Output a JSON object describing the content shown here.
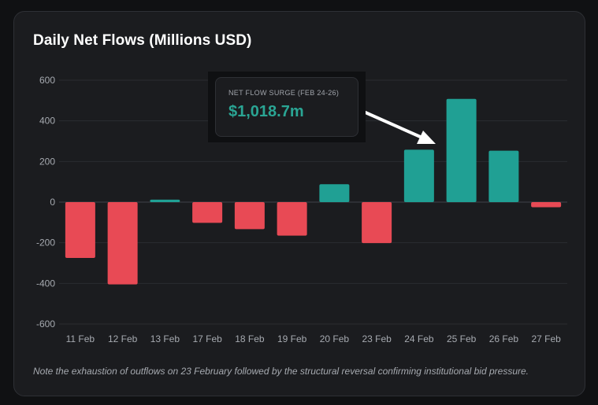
{
  "colors": {
    "positive": "#20a094",
    "negative": "#e84a55",
    "grid": "#2b2d31",
    "zero_line": "#3f4248",
    "tick": "#a6aab0",
    "arrow": "#ffffff"
  },
  "chart_data": {
    "type": "bar",
    "title": "Daily Net Flows (Millions USD)",
    "xlabel": "",
    "ylabel": "",
    "ylim": [
      -600,
      600
    ],
    "yticks": [
      600,
      400,
      200,
      0,
      -200,
      -400,
      -600
    ],
    "categories": [
      "11 Feb",
      "12 Feb",
      "13 Feb",
      "17 Feb",
      "18 Feb",
      "19 Feb",
      "20 Feb",
      "23 Feb",
      "24 Feb",
      "25 Feb",
      "26 Feb",
      "27 Feb"
    ],
    "values": [
      -275,
      -405,
      12,
      -102,
      -133,
      -165,
      88,
      -202,
      258,
      508,
      253,
      -25
    ],
    "grid": true,
    "legend": "none",
    "annotation": {
      "label": "NET FLOW SURGE (FEB 24-26)",
      "value": "$1,018.7m"
    },
    "note": "Note the exhaustion of outflows on 23 February followed by the structural reversal confirming institutional bid pressure."
  }
}
